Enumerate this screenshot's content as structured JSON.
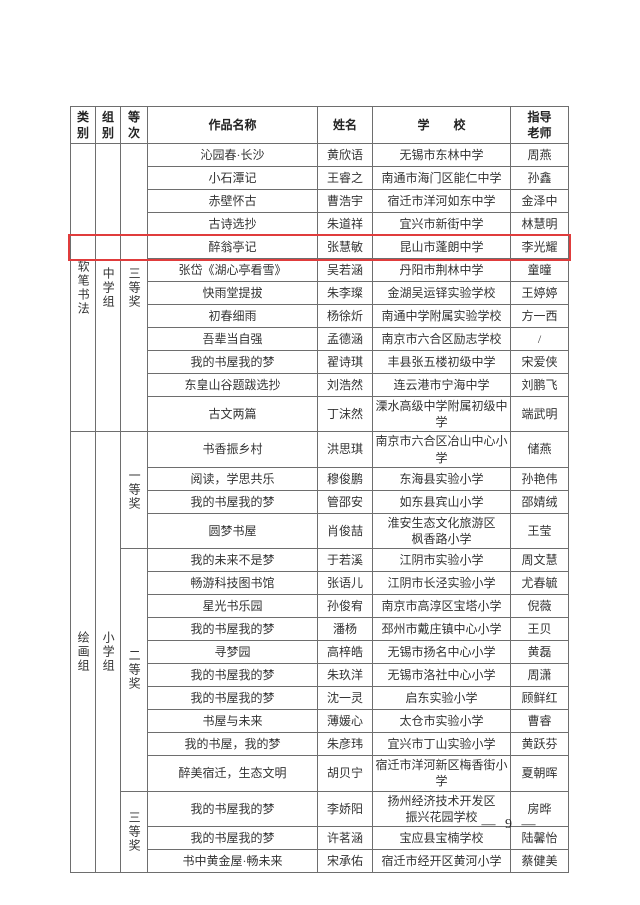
{
  "page": {
    "number_label": "— 9 —"
  },
  "table": {
    "headers": [
      "类\n别",
      "组\n别",
      "等\n次",
      "作品名称",
      "姓名",
      "学　　校",
      "指导\n老师"
    ],
    "highlight_color": "#e03c3c",
    "sections": [
      {
        "category": "软笔书法",
        "group": "中学组",
        "ranks": [
          {
            "rank": "三等奖",
            "rows": [
              {
                "title": "沁园春·长沙",
                "name": "黄欣语",
                "school": "无锡市东林中学",
                "teacher": "周燕"
              },
              {
                "title": "小石潭记",
                "name": "王睿之",
                "school": "南通市海门区能仁中学",
                "teacher": "孙鑫"
              },
              {
                "title": "赤壁怀古",
                "name": "曹浩宇",
                "school": "宿迁市洋河如东中学",
                "teacher": "金泽中"
              },
              {
                "title": "古诗选抄",
                "name": "朱道祥",
                "school": "宜兴市新街中学",
                "teacher": "林慧明"
              },
              {
                "title": "醉翁亭记",
                "name": "张慧敏",
                "school": "昆山市蓬朗中学",
                "teacher": "李光耀",
                "highlight": true
              },
              {
                "title": "张岱《湖心亭看雪》",
                "name": "吴若涵",
                "school": "丹阳市荆林中学",
                "teacher": "童曈"
              },
              {
                "title": "快雨堂提拔",
                "name": "朱李璨",
                "school": "金湖吴运铎实验学校",
                "teacher": "王婷婷"
              },
              {
                "title": "初春细雨",
                "name": "杨徐炘",
                "school": "南通中学附属实验学校",
                "teacher": "方一西"
              },
              {
                "title": "吾辈当自强",
                "name": "孟德涵",
                "school": "南京市六合区励志学校",
                "teacher": "/"
              },
              {
                "title": "我的书屋我的梦",
                "name": "翟诗琪",
                "school": "丰县张五楼初级中学",
                "teacher": "宋爱侠"
              },
              {
                "title": "东皇山谷题跋选抄",
                "name": "刘浩然",
                "school": "连云港市宁海中学",
                "teacher": "刘鹏飞"
              },
              {
                "title": "古文两篇",
                "name": "丁沫然",
                "school": "溧水高级中学附属初级中学",
                "teacher": "端武明"
              }
            ]
          }
        ]
      },
      {
        "category": "绘画组",
        "group": "小学组",
        "ranks": [
          {
            "rank": "一等奖",
            "rows": [
              {
                "title": "书香振乡村",
                "name": "洪思琪",
                "school": "南京市六合区冶山中心小学",
                "teacher": "储燕"
              },
              {
                "title": "阅读，学思共乐",
                "name": "穆俊鹏",
                "school": "东海县实验小学",
                "teacher": "孙艳伟"
              },
              {
                "title": "我的书屋我的梦",
                "name": "管邵安",
                "school": "如东县宾山小学",
                "teacher": "邵婧绒"
              },
              {
                "title": "圆梦书屋",
                "name": "肖俊喆",
                "school": "淮安生态文化旅游区\n枫香路小学",
                "teacher": "王莹"
              }
            ]
          },
          {
            "rank": "二等奖",
            "rows": [
              {
                "title": "我的未来不是梦",
                "name": "于若溪",
                "school": "江阴市实验小学",
                "teacher": "周文慧"
              },
              {
                "title": "畅游科技图书馆",
                "name": "张语儿",
                "school": "江阴市长泾实验小学",
                "teacher": "尤春毓"
              },
              {
                "title": "星光书乐园",
                "name": "孙俊宥",
                "school": "南京市高淳区宝塔小学",
                "teacher": "倪薇"
              },
              {
                "title": "我的书屋我的梦",
                "name": "潘杨",
                "school": "邳州市戴庄镇中心小学",
                "teacher": "王贝"
              },
              {
                "title": "寻梦园",
                "name": "高梓皓",
                "school": "无锡市扬名中心小学",
                "teacher": "黄磊"
              },
              {
                "title": "我的书屋我的梦",
                "name": "朱玖洋",
                "school": "无锡市洛社中心小学",
                "teacher": "周潇"
              },
              {
                "title": "我的书屋我的梦",
                "name": "沈一灵",
                "school": "启东实验小学",
                "teacher": "顾鲜红"
              },
              {
                "title": "书屋与未来",
                "name": "薄媛心",
                "school": "太仓市实验小学",
                "teacher": "曹睿"
              },
              {
                "title": "我的书屋，我的梦",
                "name": "朱彦玮",
                "school": "宜兴市丁山实验小学",
                "teacher": "黄跃芬"
              },
              {
                "title": "醉美宿迁，生态文明",
                "name": "胡贝宁",
                "school": "宿迁市洋河新区梅香街小学",
                "teacher": "夏朝晖"
              }
            ]
          },
          {
            "rank": "三等奖",
            "rows": [
              {
                "title": "我的书屋我的梦",
                "name": "李娇阳",
                "school": "扬州经济技术开发区\n振兴花园学校",
                "teacher": "房晔"
              },
              {
                "title": "我的书屋我的梦",
                "name": "许茗涵",
                "school": "宝应县宝楠学校",
                "teacher": "陆馨怡"
              },
              {
                "title": "书中黄金屋·畅未来",
                "name": "宋承佑",
                "school": "宿迁市经开区黄河小学",
                "teacher": "蔡健美"
              }
            ]
          }
        ]
      }
    ]
  }
}
